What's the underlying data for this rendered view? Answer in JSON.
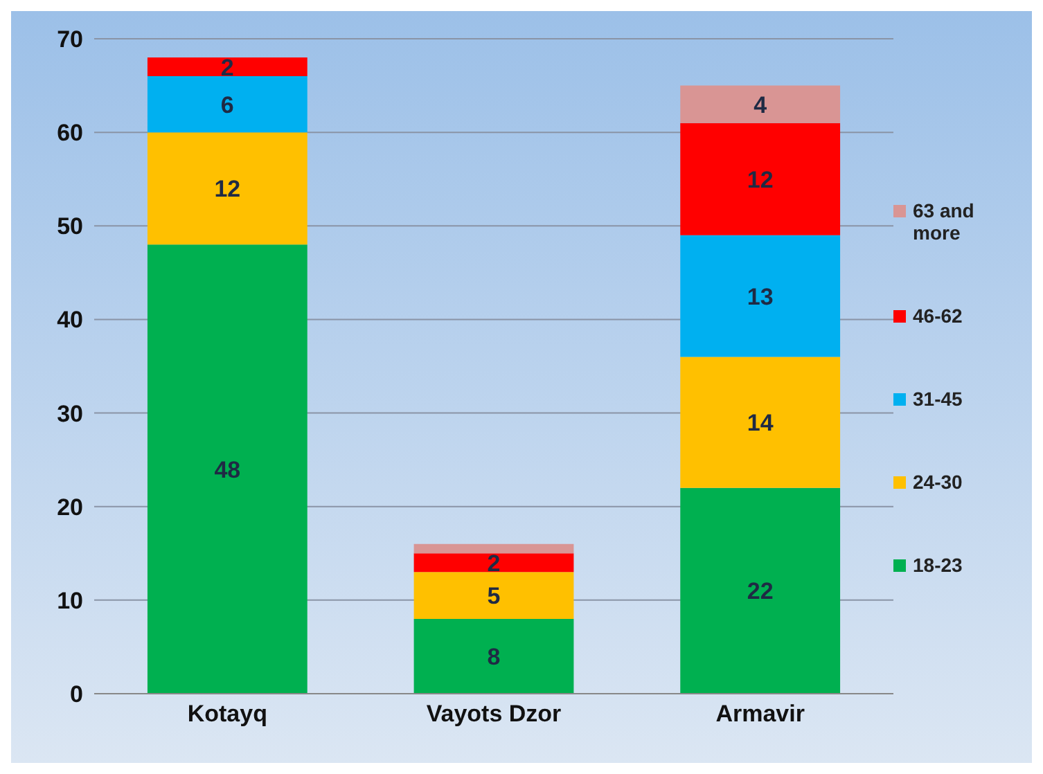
{
  "chart_data": {
    "type": "bar",
    "stacked": true,
    "categories": [
      "Kotayq",
      "Vayots Dzor",
      "Armavir"
    ],
    "series": [
      {
        "name": "18-23",
        "color": "#00b050",
        "values": [
          48,
          8,
          22
        ],
        "value_labels": [
          "48",
          "8",
          "22"
        ]
      },
      {
        "name": "24-30",
        "color": "#ffc000",
        "values": [
          12,
          5,
          14
        ],
        "value_labels": [
          "12",
          "5",
          "14"
        ]
      },
      {
        "name": "31-45",
        "color": "#00b0f0",
        "values": [
          6,
          null,
          13
        ],
        "value_labels": [
          "6",
          null,
          "13"
        ]
      },
      {
        "name": "46-62",
        "color": "#ff0000",
        "values": [
          2,
          2,
          12
        ],
        "value_labels": [
          "2",
          "2",
          "12"
        ]
      },
      {
        "name": "63 and more",
        "color": "#d99594",
        "values": [
          null,
          1,
          4
        ],
        "value_labels": [
          null,
          null,
          "4"
        ]
      }
    ],
    "ylim": [
      0,
      70
    ],
    "yticks": [
      0,
      10,
      20,
      30,
      40,
      50,
      60,
      70
    ],
    "grid": "y",
    "legend": "right"
  }
}
